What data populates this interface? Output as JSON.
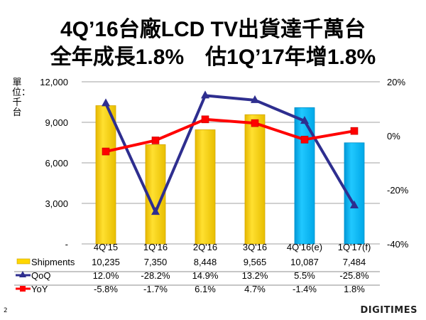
{
  "slide": {
    "title_line1": "4Q’16台廠LCD TV出貨達千萬台",
    "title_line2": "全年成長1.8%　估1Q’17年增1.8%",
    "unit_label": "單位：千台",
    "page_number": "2",
    "logo_text": "DIGITIMES"
  },
  "colors": {
    "shipments_actual": "#FFD700",
    "shipments_forecast": "#00B8F0",
    "qoq_line": "#2E2E8F",
    "yoy_line": "#FF0000",
    "grid": "#A0A0A0"
  },
  "chart_data": {
    "type": "bar+line",
    "title": "4Q’16台廠LCD TV出貨達千萬台 全年成長1.8% 估1Q’17年增1.8%",
    "categories": [
      "4Q'15",
      "1Q'16",
      "2Q'16",
      "3Q'16",
      "4Q'16(e)",
      "1Q'17(f)"
    ],
    "left_axis": {
      "label": "單位：千台",
      "range": [
        0,
        12000
      ],
      "ticks": [
        0,
        3000,
        6000,
        9000,
        12000
      ],
      "tick_labels": [
        "-",
        "3,000",
        "6,000",
        "9,000",
        "12,000"
      ]
    },
    "right_axis": {
      "range": [
        -40,
        20
      ],
      "ticks": [
        -40,
        -20,
        0,
        20
      ],
      "tick_labels": [
        "-40%",
        "-20%",
        "0%",
        "20%"
      ]
    },
    "grid": true,
    "legend_placement": "data-table-left",
    "series": [
      {
        "name": "Shipments",
        "type": "bar",
        "axis": "left",
        "values": [
          10235,
          7350,
          8448,
          9565,
          10087,
          7484
        ],
        "labels": [
          "10,235",
          "7,350",
          "8,448",
          "9,565",
          "10,087",
          "7,484"
        ],
        "forecast_from_index": 4
      },
      {
        "name": "QoQ",
        "type": "line",
        "marker": "triangle",
        "axis": "right",
        "values": [
          12.0,
          -28.2,
          14.9,
          13.2,
          5.5,
          -25.8
        ],
        "labels": [
          "12.0%",
          "-28.2%",
          "14.9%",
          "13.2%",
          "5.5%",
          "-25.8%"
        ]
      },
      {
        "name": "YoY",
        "type": "line",
        "marker": "square",
        "axis": "right",
        "values": [
          -5.8,
          -1.7,
          6.1,
          4.7,
          -1.4,
          1.8
        ],
        "labels": [
          "-5.8%",
          "-1.7%",
          "6.1%",
          "4.7%",
          "-1.4%",
          "1.8%"
        ]
      }
    ]
  }
}
